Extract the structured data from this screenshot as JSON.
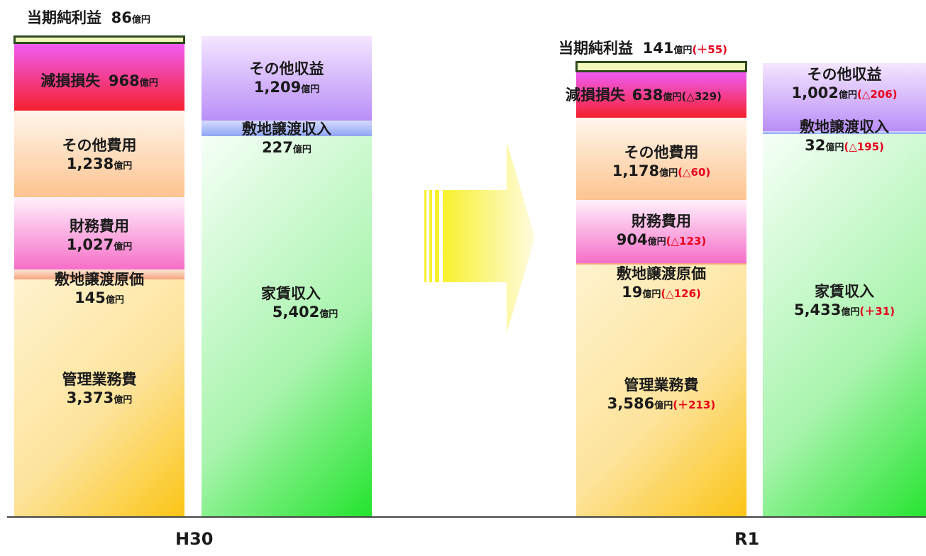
{
  "unit": "億円",
  "chart_data": {
    "type": "bar",
    "categories": [
      "H30",
      "R1"
    ],
    "series": [
      {
        "name": "当期純利益",
        "values": [
          86,
          141
        ],
        "change": [
          null,
          "+55"
        ]
      },
      {
        "name": "減損損失",
        "values": [
          968,
          638
        ],
        "change": [
          null,
          "△329"
        ]
      },
      {
        "name": "その他費用",
        "values": [
          1238,
          1178
        ],
        "change": [
          null,
          "△60"
        ]
      },
      {
        "name": "財務費用",
        "values": [
          1027,
          904
        ],
        "change": [
          null,
          "△123"
        ]
      },
      {
        "name": "敷地譲渡原価",
        "values": [
          145,
          19
        ],
        "change": [
          null,
          "△126"
        ]
      },
      {
        "name": "管理業務費",
        "values": [
          3373,
          3586
        ],
        "change": [
          null,
          "+213"
        ]
      },
      {
        "name": "その他収益",
        "values": [
          1209,
          1002
        ],
        "change": [
          null,
          "△206"
        ]
      },
      {
        "name": "敷地譲渡収入",
        "values": [
          227,
          32
        ],
        "change": [
          null,
          "△195"
        ]
      },
      {
        "name": "家賃収入",
        "values": [
          5402,
          5433
        ],
        "change": [
          null,
          "+31"
        ]
      }
    ],
    "labels": {
      "h30": {
        "net": {
          "name": "当期純利益",
          "value": "86"
        },
        "impair": {
          "name": "減損損失",
          "value": "968"
        },
        "other_cost": {
          "name": "その他費用",
          "value": "1,238"
        },
        "finance": {
          "name": "財務費用",
          "value": "1,027"
        },
        "site_cost": {
          "name": "敷地譲渡原価",
          "value": "145"
        },
        "mgmt": {
          "name": "管理業務費",
          "value": "3,373"
        },
        "other_rev": {
          "name": "その他収益",
          "value": "1,209"
        },
        "site_rev": {
          "name": "敷地譲渡収入",
          "value": "227"
        },
        "rent": {
          "name": "家賃収入",
          "value": "5,402"
        }
      },
      "r1": {
        "net": {
          "name": "当期純利益",
          "value": "141",
          "change": "(＋55)"
        },
        "impair": {
          "name": "減損損失",
          "value": "638",
          "change": "(△329)"
        },
        "other_cost": {
          "name": "その他費用",
          "value": "1,178",
          "change": "(△60)"
        },
        "finance": {
          "name": "財務費用",
          "value": "904",
          "change": "(△123)"
        },
        "site_cost": {
          "name": "敷地譲渡原価",
          "value": "19",
          "change": "(△126)"
        },
        "mgmt": {
          "name": "管理業務費",
          "value": "3,586",
          "change": "(＋213)"
        },
        "other_rev": {
          "name": "その他収益",
          "value": "1,002",
          "change": "(△206)"
        },
        "site_rev": {
          "name": "敷地譲渡収入",
          "value": "32",
          "change": "(△195)"
        },
        "rent": {
          "name": "家賃収入",
          "value": "5,433",
          "change": "(＋31)"
        }
      }
    },
    "colors": {
      "net": "#f1f7b8",
      "impair": [
        "#f05cf3",
        "#f5202e"
      ],
      "other_cost": [
        "#fff6ec",
        "#fdc48f"
      ],
      "finance": [
        "#fff0fb",
        "#f66fc9"
      ],
      "site_cost": [
        "#fde6d4",
        "#f4a47f"
      ],
      "mgmt": [
        "#fff3cf",
        "#fbc516"
      ],
      "other_rev": [
        "#f4e6ff",
        "#b98ef8"
      ],
      "site_rev": [
        "#d6dcff",
        "#8ea4f4"
      ],
      "rent": [
        "#f4fff5",
        "#22e42c"
      ]
    }
  }
}
